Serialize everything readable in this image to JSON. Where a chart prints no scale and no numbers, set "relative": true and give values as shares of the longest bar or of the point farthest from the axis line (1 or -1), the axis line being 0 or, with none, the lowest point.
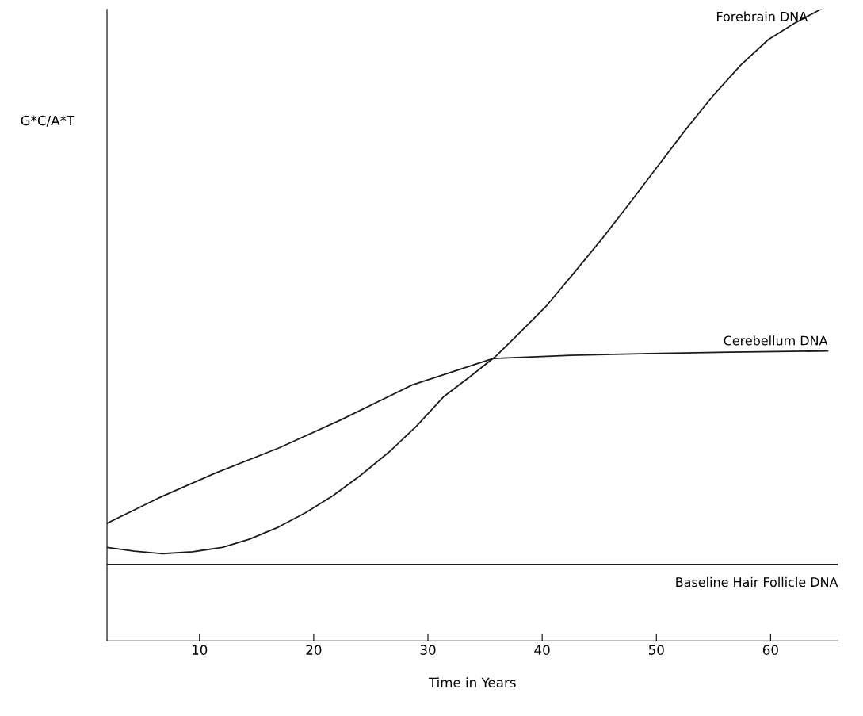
{
  "chart_data": {
    "type": "line",
    "relative": true,
    "xlabel": "Time in Years",
    "ylabel": "G*C/A*T",
    "xlim": [
      1.9,
      65.9
    ],
    "xticks": [
      10,
      20,
      30,
      40,
      50,
      60
    ],
    "tick_labels": "x",
    "grid": false,
    "legend": false,
    "series": [
      {
        "name": "Forebrain DNA",
        "color": "#1a1a1a",
        "x": [
          1.9,
          4.3,
          6.8,
          9.4,
          12.0,
          14.4,
          16.9,
          19.3,
          21.7,
          24.1,
          26.6,
          29.0,
          31.4,
          33.6,
          35.9,
          38.1,
          40.4,
          42.8,
          45.3,
          47.7,
          50.1,
          52.5,
          55.0,
          57.4,
          59.8,
          62.1,
          64.4
        ],
        "values": [
          0.148,
          0.142,
          0.138,
          0.141,
          0.148,
          0.161,
          0.18,
          0.203,
          0.23,
          0.262,
          0.299,
          0.34,
          0.387,
          0.417,
          0.45,
          0.489,
          0.531,
          0.583,
          0.638,
          0.694,
          0.751,
          0.808,
          0.864,
          0.912,
          0.952,
          0.978,
          1.0
        ]
      },
      {
        "name": "Cerebellum DNA",
        "color": "#1a1a1a",
        "x": [
          1.9,
          6.4,
          11.3,
          16.9,
          22.4,
          28.6,
          35.7,
          42.5,
          49.4,
          56.4,
          65.0
        ],
        "values": [
          0.186,
          0.226,
          0.265,
          0.305,
          0.35,
          0.405,
          0.447,
          0.452,
          0.455,
          0.457,
          0.459
        ]
      },
      {
        "name": "Baseline Hair Follicle DNA",
        "color": "#1a1a1a",
        "x": [
          1.9,
          65.9
        ],
        "values": [
          0.121,
          0.121
        ]
      }
    ]
  }
}
